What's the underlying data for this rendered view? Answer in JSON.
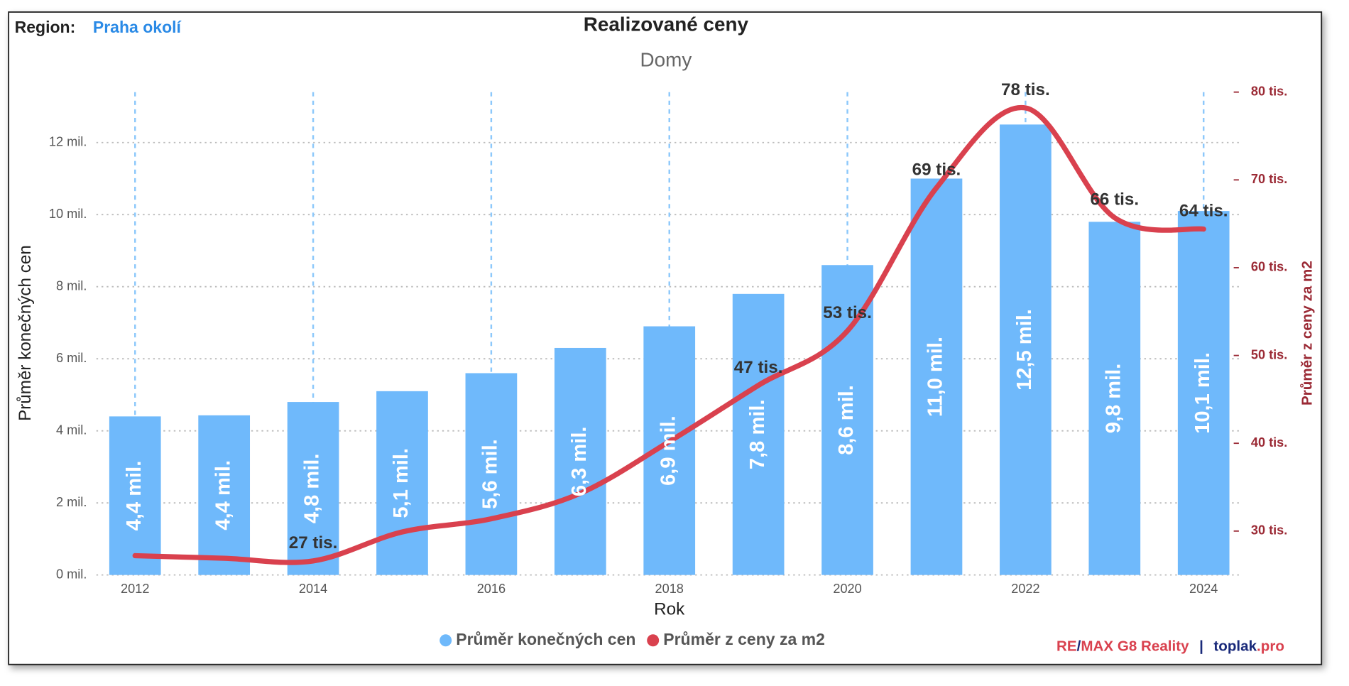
{
  "chart_data": {
    "type": "combo",
    "title": "Realizované ceny",
    "subtitle": "Domy",
    "region_label": "Region:",
    "region": "Praha okolí",
    "x_label": "Rok",
    "y_label": "Průměr konečných cen",
    "y2_label": "Průměr z ceny za m2",
    "categories": [
      "2012",
      null,
      "2014",
      null,
      "2016",
      null,
      "2018",
      null,
      "2020",
      null,
      "2022",
      null,
      "2024"
    ],
    "series": [
      {
        "name": "Průměr konečných cen",
        "type": "bar",
        "color": "#6fb9fb",
        "values": [
          4.4,
          4.43,
          4.8,
          5.1,
          5.6,
          6.3,
          6.9,
          7.8,
          8.6,
          11.0,
          12.5,
          9.8,
          10.1
        ],
        "value_labels": [
          "4,4 mil.",
          "4,4 mil.",
          "4,8 mil.",
          "5,1 mil.",
          "5,6 mil.",
          "6,3 mil.",
          "6,9 mil.",
          "7,8 mil.",
          "8,6 mil.",
          "11,0 mil.",
          "12,5 mil.",
          "9,8 mil.",
          "10,1 mil."
        ]
      },
      {
        "name": "Průměr z ceny za m2",
        "type": "line",
        "axis": "y2",
        "color": "#d9414e",
        "values": [
          27.2,
          26.9,
          26.6,
          29.9,
          31.4,
          34.3,
          40.2,
          46.6,
          52.8,
          69.1,
          78.2,
          65.7,
          64.4
        ],
        "value_labels": [
          null,
          null,
          "27 tis.",
          null,
          null,
          null,
          null,
          "47 tis.",
          "53 tis.",
          "69 tis.",
          "78 tis.",
          "66 tis.",
          "64 tis."
        ]
      }
    ],
    "ylim": [
      0,
      13.4
    ],
    "yticks": [
      {
        "value": 0,
        "label": "0 mil."
      },
      {
        "value": 2,
        "label": "2 mil."
      },
      {
        "value": 4,
        "label": "4 mil."
      },
      {
        "value": 6,
        "label": "6 mil."
      },
      {
        "value": 8,
        "label": "8 mil."
      },
      {
        "value": 10,
        "label": "10 mil."
      },
      {
        "value": 12,
        "label": "12 mil."
      }
    ],
    "y2lim": [
      25,
      80
    ],
    "y2ticks": [
      {
        "value": 30,
        "label": "30 tis."
      },
      {
        "value": 40,
        "label": "40 tis."
      },
      {
        "value": 50,
        "label": "50 tis."
      },
      {
        "value": 60,
        "label": "60 tis."
      },
      {
        "value": 70,
        "label": "70 tis."
      },
      {
        "value": 80,
        "label": "80 tis."
      }
    ],
    "grid": true,
    "legend": "bottom",
    "branding": {
      "re": "RE",
      "slash": "/",
      "remax": "MAX G8 Reality",
      "separator": "|",
      "toplak": "toplak",
      "pro": ".pro"
    }
  }
}
